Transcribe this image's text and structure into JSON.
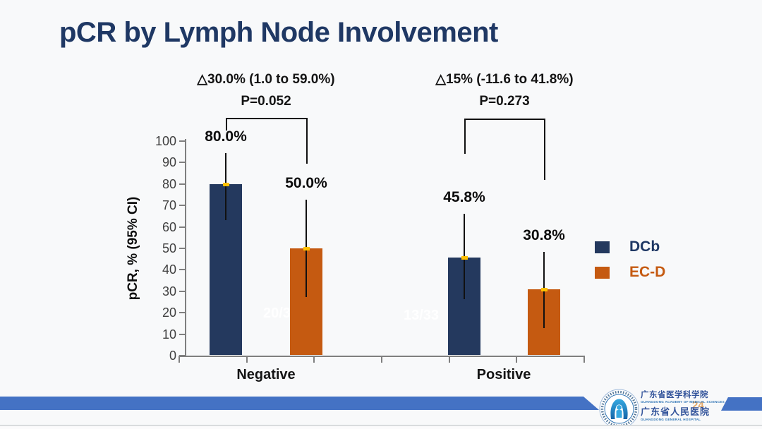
{
  "slide": {
    "title": "pCR by Lymph Node Involvement",
    "page_number": "24"
  },
  "annotations": {
    "negative": {
      "delta": "△30.0% (1.0 to 59.0%)",
      "p_value": "P=0.052"
    },
    "positive": {
      "delta": "△15% (-11.6 to 41.8%)",
      "p_value": "P=0.273"
    }
  },
  "legend": [
    {
      "label": "DCb",
      "color": "#24395E",
      "text_color": "#1F3864"
    },
    {
      "label": "EC-D",
      "color": "#C55A11",
      "text_color": "#C55A11"
    }
  ],
  "watermarks": [
    "20/3",
    "13/33"
  ],
  "footer": {
    "org_line1_zh": "广东省医学科学院",
    "org_line1_en": "GUANGDONG ACADEMY OF MEDICAL SCIENCES",
    "org_line2_zh": "广东省人民医院",
    "org_line2_en": "GUANGDONG GENERAL HOSPITAL"
  },
  "colors": {
    "background": "#F8F9FA",
    "title": "#1F3864",
    "band_blue": "#4472C4",
    "axis": "#7F7F7F",
    "bar_dcb": "#24395E",
    "bar_ecd": "#C55A11",
    "error_marker": "#FFC000"
  },
  "chart_data": {
    "type": "bar",
    "title": "pCR by Lymph Node Involvement",
    "categories": [
      "Negative",
      "Positive"
    ],
    "series": [
      {
        "name": "DCb",
        "color": "#24395E",
        "values": [
          80.0,
          45.8
        ],
        "labels": [
          "80.0%",
          "45.8%"
        ],
        "ci_low": [
          63.0,
          26.4
        ],
        "ci_high": [
          94.3,
          66.2
        ]
      },
      {
        "name": "EC-D",
        "color": "#C55A11",
        "values": [
          50.0,
          30.8
        ],
        "labels": [
          "50.0%",
          "30.8%"
        ],
        "ci_low": [
          27.2,
          12.7
        ],
        "ci_high": [
          72.8,
          48.5
        ]
      }
    ],
    "xlabel": "",
    "ylabel": "pCR, % (95% CI)",
    "ylim": [
      0,
      100
    ],
    "ytick_step": 10,
    "grid": false,
    "legend_position": "right",
    "error_bars": true,
    "comparisons": [
      {
        "group": "Negative",
        "delta": "△30.0% (1.0 to 59.0%)",
        "p_value": "P=0.052"
      },
      {
        "group": "Positive",
        "delta": "△15% (-11.6 to 41.8%)",
        "p_value": "P=0.273"
      }
    ]
  }
}
